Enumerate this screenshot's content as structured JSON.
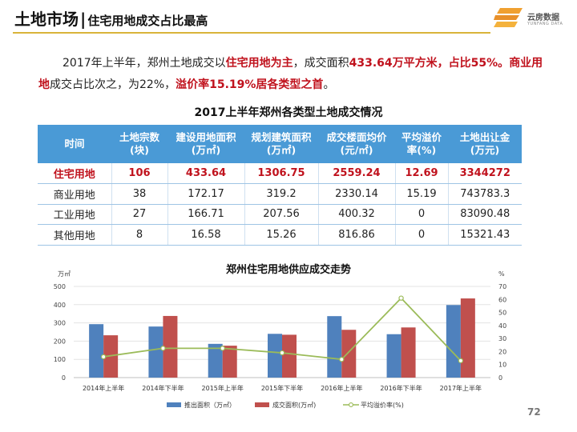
{
  "header": {
    "title_main": "土地市场",
    "title_sep": "|",
    "title_sub": "住宅用地成交占比最高"
  },
  "logo": {
    "name_cn": "云房数据",
    "name_en": "YUNFANG DATA"
  },
  "summary": {
    "t1": "2017年上半年，郑州土地成交以",
    "t2": "住宅用地为主",
    "t3": "，成交面积",
    "t4": "433.64万平方米，占比55%。",
    "t5": "商业用地",
    "t6": "成交占比次之，为22%，",
    "t7": "溢价率15.19%居各类型之首",
    "t8": "。"
  },
  "table": {
    "title": "2017上半年郑州各类型土地成交情况",
    "headers": [
      [
        "时间",
        ""
      ],
      [
        "土地宗数",
        "(块)"
      ],
      [
        "建设用地面积",
        "(万㎡)"
      ],
      [
        "规划建筑面积",
        "(万㎡)"
      ],
      [
        "成交楼面均价",
        "(元/㎡)"
      ],
      [
        "平均溢价",
        "率(%)"
      ],
      [
        "土地出让金",
        "(万元)"
      ]
    ],
    "rows": [
      [
        "住宅用地",
        "106",
        "433.64",
        "1306.75",
        "2559.24",
        "12.69",
        "3344272"
      ],
      [
        "商业用地",
        "38",
        "172.17",
        "319.2",
        "2330.14",
        "15.19",
        "743783.3"
      ],
      [
        "工业用地",
        "27",
        "166.71",
        "207.56",
        "400.32",
        "0",
        "83090.48"
      ],
      [
        "其他用地",
        "8",
        "16.58",
        "15.26",
        "816.86",
        "0",
        "15321.43"
      ]
    ]
  },
  "chart_data": {
    "type": "bar",
    "title": "郑州住宅用地供应成交走势",
    "ylabel": "万㎡",
    "y2label": "%",
    "ylim": [
      0,
      500
    ],
    "yticks": [
      0,
      100,
      200,
      300,
      400,
      500
    ],
    "y2lim": [
      0,
      70
    ],
    "y2ticks": [
      0,
      10,
      20,
      30,
      40,
      50,
      60,
      70
    ],
    "categories": [
      "2014年上半年",
      "2014年下半年",
      "2015年上半年",
      "2015年下半年",
      "2016年上半年",
      "2016年下半年",
      "2017年上半年"
    ],
    "series": [
      {
        "name": "推出面积（万㎡）",
        "type": "bar",
        "axis": "left",
        "color": "#4f81bd",
        "values": [
          293,
          280,
          185,
          240,
          337,
          238,
          398
        ]
      },
      {
        "name": "成交面积(万㎡)",
        "type": "bar",
        "axis": "left",
        "color": "#c0504d",
        "values": [
          232,
          338,
          175,
          235,
          262,
          275,
          434
        ]
      },
      {
        "name": "平均溢价率(%)",
        "type": "line",
        "axis": "right",
        "color": "#9bbb59",
        "values": [
          16,
          22.5,
          22.5,
          19,
          14,
          61,
          13
        ]
      }
    ]
  },
  "page_number": "72"
}
